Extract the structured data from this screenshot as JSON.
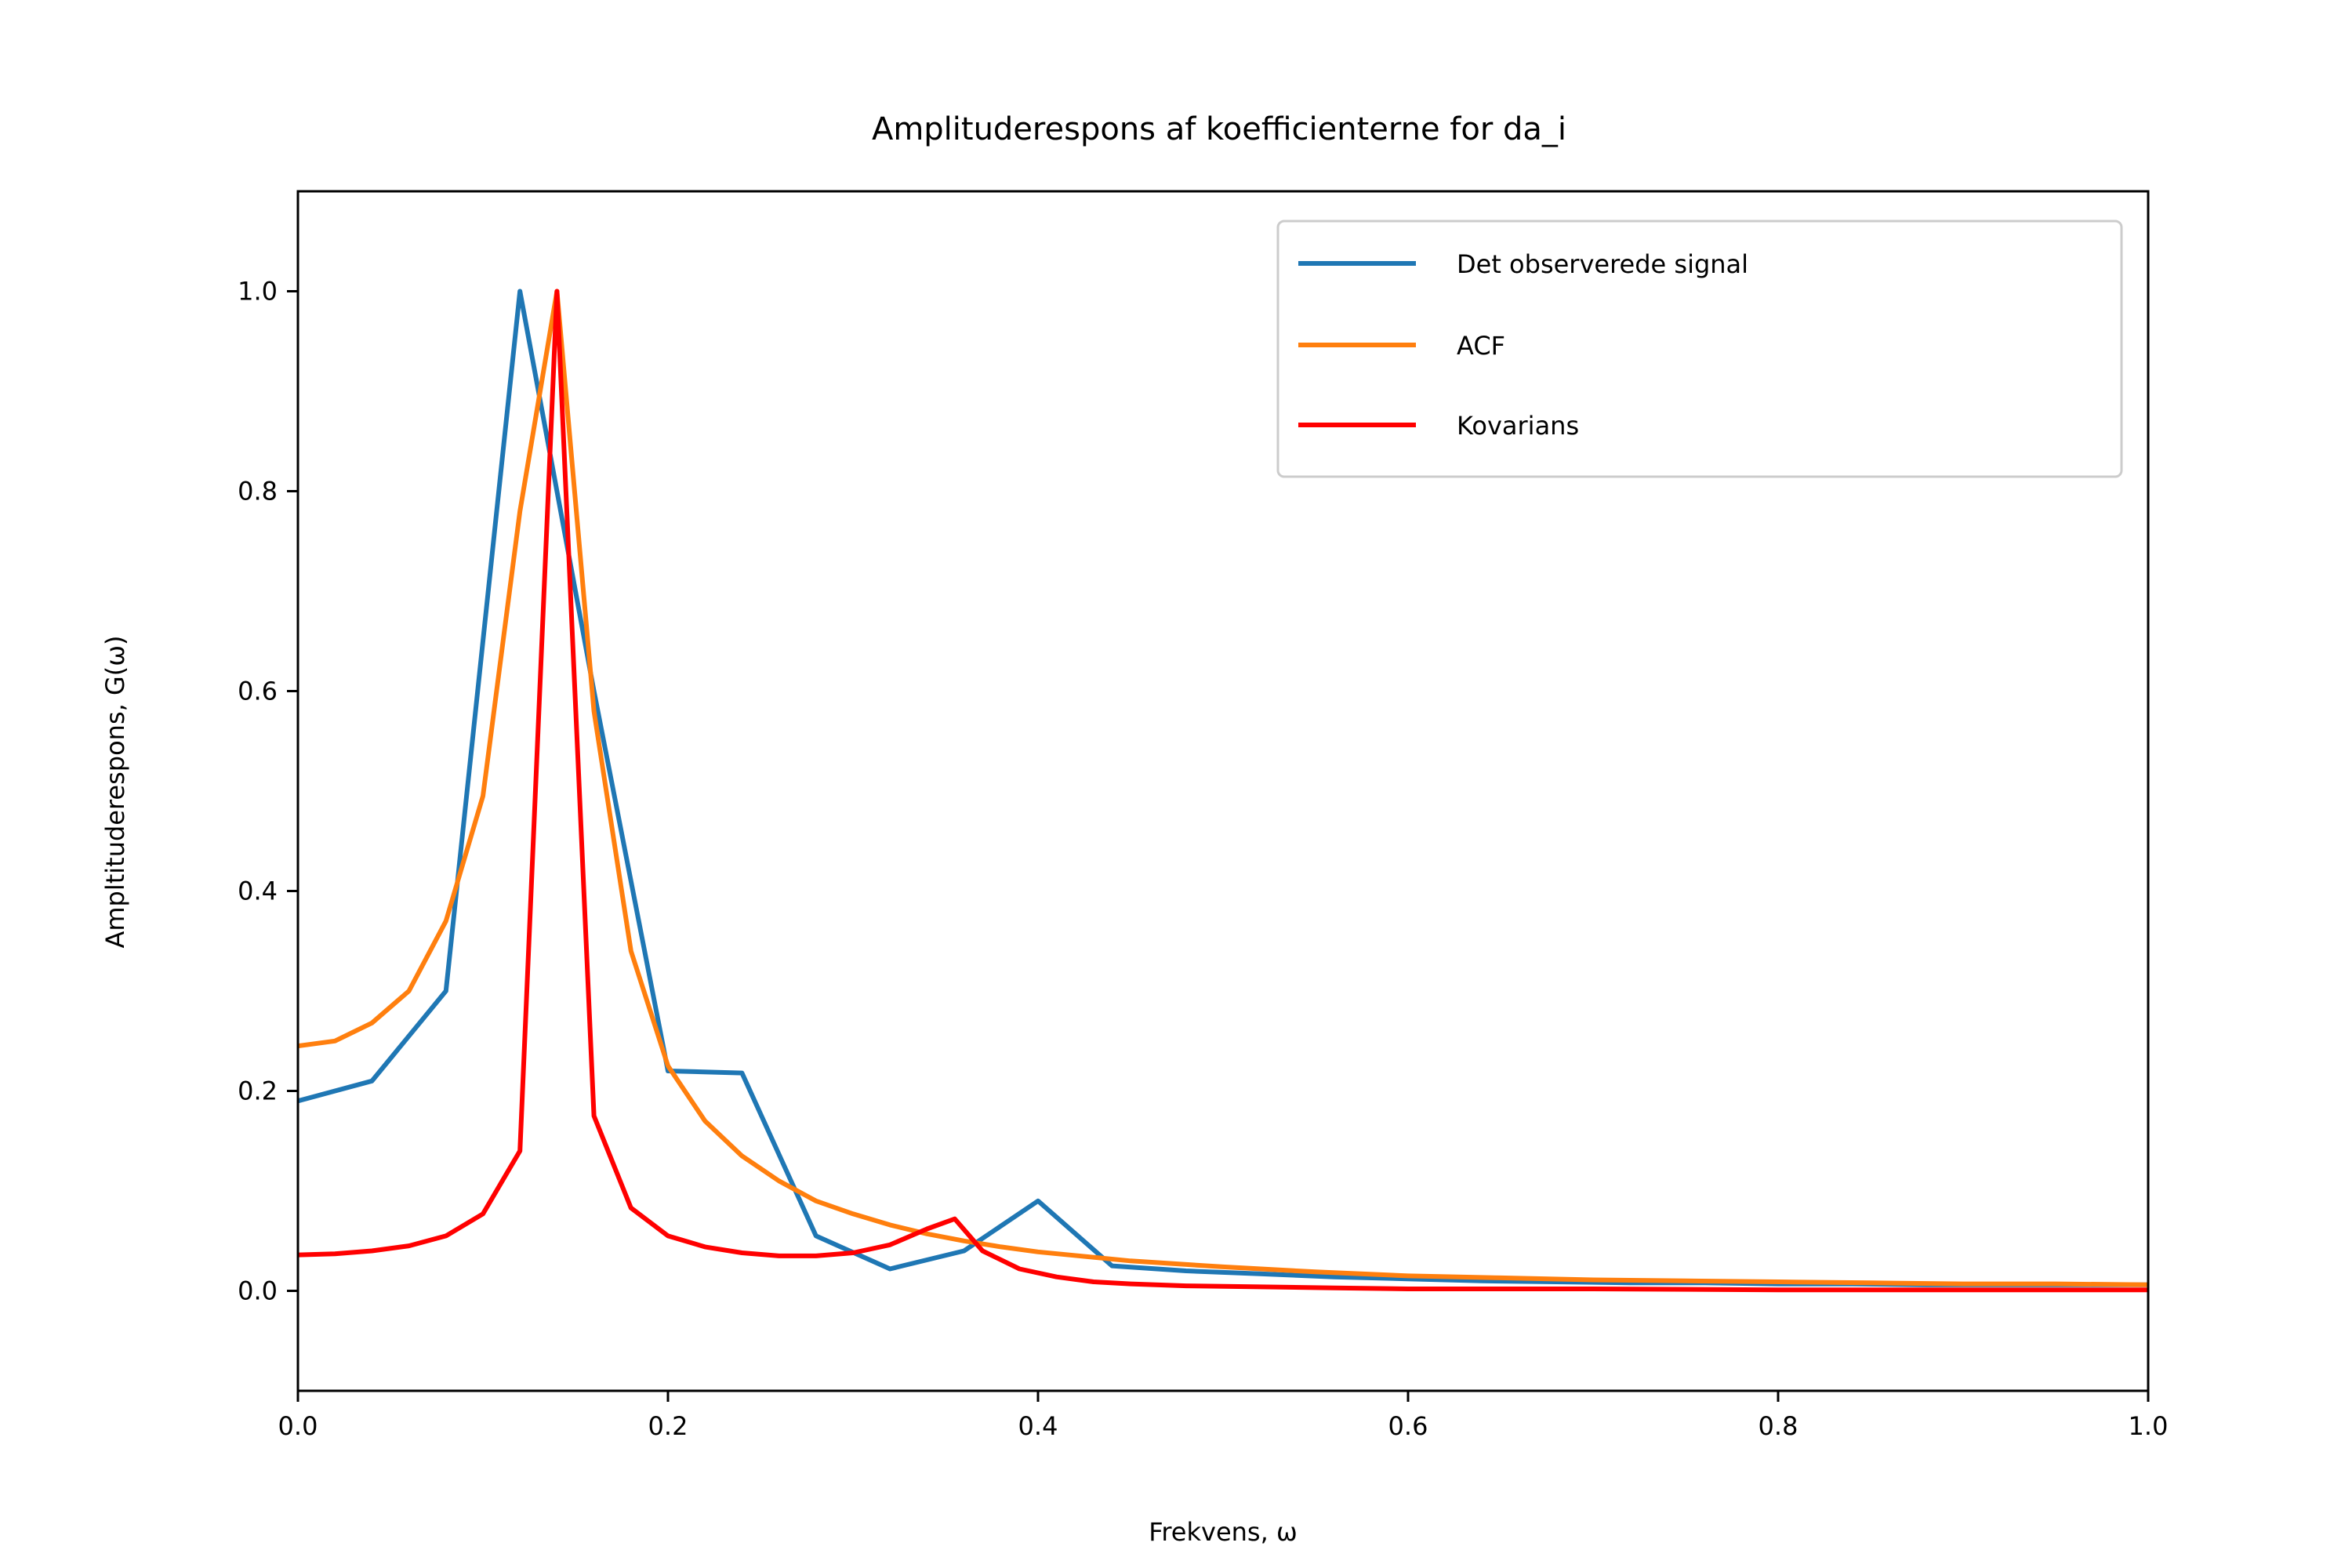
{
  "chart_data": {
    "type": "line",
    "title": "Amplituderespons af koefficienterne for da_i",
    "xlabel": "Frekvens, ω",
    "ylabel": "Ampltituderespons, G(ω)",
    "xlim": [
      0.0,
      1.0
    ],
    "ylim": [
      -0.1,
      1.1
    ],
    "xticks": [
      "0.0",
      "0.2",
      "0.4",
      "0.6",
      "0.8",
      "1.0"
    ],
    "yticks": [
      "0.0",
      "0.2",
      "0.4",
      "0.6",
      "0.8",
      "1.0"
    ],
    "grid": false,
    "legend_position": "top-right",
    "series": [
      {
        "name": "Det observerede signal",
        "color": "#1f77b4",
        "x": [
          0.0,
          0.04,
          0.08,
          0.12,
          0.16,
          0.2,
          0.24,
          0.28,
          0.32,
          0.36,
          0.4,
          0.44,
          0.48,
          0.52,
          0.56,
          0.6,
          0.64,
          0.68,
          0.72,
          0.76,
          0.8,
          0.84,
          0.88,
          0.92,
          0.96,
          1.0
        ],
        "y": [
          0.19,
          0.21,
          0.3,
          1.0,
          0.6,
          0.22,
          0.218,
          0.055,
          0.022,
          0.04,
          0.09,
          0.025,
          0.02,
          0.017,
          0.014,
          0.012,
          0.01,
          0.009,
          0.008,
          0.008,
          0.007,
          0.007,
          0.006,
          0.006,
          0.006,
          0.006
        ]
      },
      {
        "name": "ACF",
        "color": "#ff7f0e",
        "x": [
          0.0,
          0.02,
          0.04,
          0.06,
          0.08,
          0.1,
          0.12,
          0.14,
          0.16,
          0.18,
          0.2,
          0.22,
          0.24,
          0.26,
          0.28,
          0.3,
          0.32,
          0.34,
          0.36,
          0.38,
          0.4,
          0.45,
          0.5,
          0.55,
          0.6,
          0.65,
          0.7,
          0.75,
          0.8,
          0.85,
          0.9,
          0.95,
          1.0
        ],
        "y": [
          0.245,
          0.25,
          0.268,
          0.3,
          0.37,
          0.495,
          0.78,
          1.0,
          0.58,
          0.34,
          0.225,
          0.17,
          0.135,
          0.11,
          0.09,
          0.077,
          0.066,
          0.057,
          0.05,
          0.044,
          0.039,
          0.03,
          0.024,
          0.019,
          0.015,
          0.013,
          0.011,
          0.01,
          0.009,
          0.008,
          0.007,
          0.007,
          0.006
        ]
      },
      {
        "name": "Kovarians",
        "color": "#ff0000",
        "x": [
          0.0,
          0.02,
          0.04,
          0.06,
          0.08,
          0.1,
          0.12,
          0.14,
          0.16,
          0.18,
          0.2,
          0.22,
          0.24,
          0.26,
          0.28,
          0.3,
          0.32,
          0.34,
          0.355,
          0.37,
          0.39,
          0.41,
          0.43,
          0.45,
          0.48,
          0.52,
          0.56,
          0.6,
          0.7,
          0.8,
          0.9,
          1.0
        ],
        "y": [
          0.036,
          0.037,
          0.04,
          0.045,
          0.055,
          0.077,
          0.14,
          1.0,
          0.175,
          0.083,
          0.055,
          0.044,
          0.038,
          0.035,
          0.035,
          0.038,
          0.046,
          0.062,
          0.072,
          0.04,
          0.022,
          0.014,
          0.009,
          0.007,
          0.005,
          0.004,
          0.003,
          0.002,
          0.002,
          0.001,
          0.001,
          0.001
        ]
      }
    ]
  }
}
